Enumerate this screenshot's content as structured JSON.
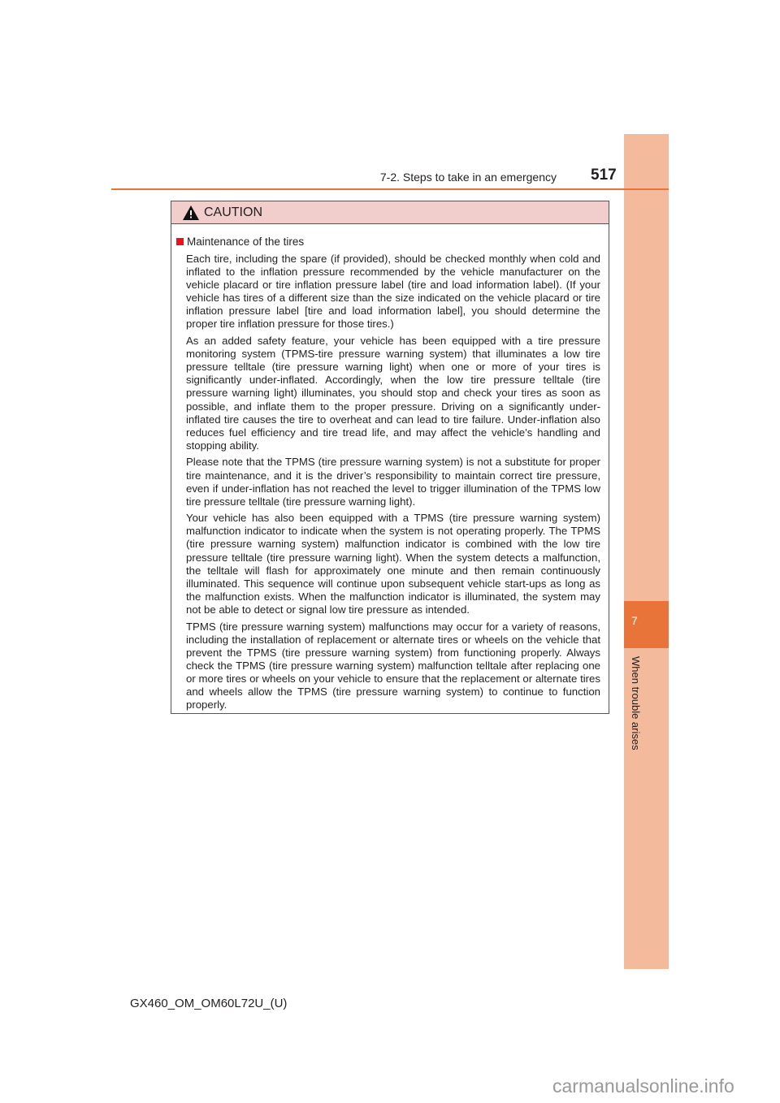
{
  "header": {
    "section": "7-2. Steps to take in an emergency",
    "page_number": "517"
  },
  "sidebar": {
    "chapter_number": "7",
    "chapter_title": "When trouble arises",
    "colors": {
      "band": "#f3bb9b",
      "tab": "#e8743a"
    }
  },
  "caution": {
    "label": "CAUTION",
    "icon": "warning-triangle-icon",
    "item_title": "Maintenance of the tires",
    "paragraphs": [
      "Each tire, including the spare (if provided), should be checked monthly when cold and inflated to the inflation pressure recommended by the vehicle manufacturer on the vehicle placard or tire inflation pressure label (tire and load information label). (If your vehicle has tires of a different size than the size indicated on the vehicle placard or tire inflation pressure label [tire and load information label], you should determine the proper tire inflation pressure for those tires.)",
      "As an added safety feature, your vehicle has been equipped with a tire pressure monitoring system (TPMS-tire pressure warning system) that illuminates a low tire pressure telltale (tire pressure warning light) when one or more of your tires is significantly under-inflated. Accordingly, when the low tire pressure telltale (tire pressure warning light) illuminates, you should stop and check your tires as soon as possible, and inflate them to the proper pressure. Driving on a significantly under-inflated tire causes the tire to overheat and can lead to tire failure. Under-inflation also reduces fuel efficiency and tire tread life, and may affect the vehicle’s handling and stopping ability.",
      "Please note that the TPMS (tire pressure warning system) is not a substitute for proper tire maintenance, and it is the driver’s responsibility to maintain correct tire pressure, even if under-inflation has not reached the level to trigger illumination of the TPMS low tire pressure telltale (tire pressure warning light).",
      "Your vehicle has also been equipped with a TPMS (tire pressure warning system) malfunction indicator to indicate when the system is not operating properly. The TPMS (tire pressure warning system) malfunction indicator is combined with the low tire pressure telltale (tire pressure warning light). When the system detects a malfunction, the telltale will flash for approximately one minute and then remain continuously illuminated. This sequence will continue upon subsequent vehicle start-ups as long as the malfunction exists. When the malfunction indicator is illuminated, the system may not be able to detect or signal low tire pressure as intended.",
      "TPMS (tire pressure warning system) malfunctions may occur for a variety of reasons, including the installation of replacement or alternate tires or wheels on the vehicle that prevent the TPMS (tire pressure warning system) from functioning properly. Always check the TPMS (tire pressure warning system) malfunction telltale after replacing one or more tires or wheels on your vehicle to ensure that the replacement or alternate tires and wheels allow the TPMS (tire pressure warning system) to continue to function properly."
    ]
  },
  "footer": {
    "code": "GX460_OM_OM60L72U_(U)"
  },
  "watermark": "carmanualsonline.info"
}
